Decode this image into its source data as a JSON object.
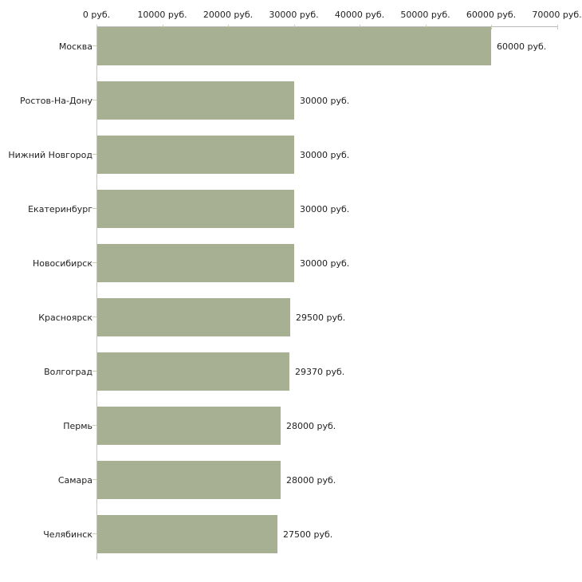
{
  "chart_data": {
    "type": "bar",
    "orientation": "horizontal",
    "title": "",
    "xlabel": "",
    "ylabel": "",
    "unit": "руб.",
    "xlim": [
      0,
      70000
    ],
    "x_tick_step": 10000,
    "x_tick_labels": [
      "0 руб.",
      "10000 руб.",
      "20000 руб.",
      "30000 руб.",
      "40000 руб.",
      "50000 руб.",
      "60000 руб.",
      "70000 руб."
    ],
    "categories": [
      "Москва",
      "Ростов-На-Дону",
      "Нижний Новгород",
      "Екатеринбург",
      "Новосибирск",
      "Красноярск",
      "Волгоград",
      "Пермь",
      "Самара",
      "Челябинск"
    ],
    "values": [
      60000,
      30000,
      30000,
      30000,
      30000,
      29500,
      29370,
      28000,
      28000,
      27500
    ],
    "value_labels": [
      "60000 руб.",
      "30000 руб.",
      "30000 руб.",
      "30000 руб.",
      "30000 руб.",
      "29500 руб.",
      "29370 руб.",
      "28000 руб.",
      "28000 руб.",
      "27500 руб."
    ],
    "grid": false,
    "legend_position": "none",
    "colors": {
      "bar": "#a8b094",
      "axis_line": "#b9b9b9",
      "category_axis_line": "#c6c6c0",
      "tick_mark": "#ccccae",
      "text": "#222222",
      "background": "#ffffff"
    }
  }
}
